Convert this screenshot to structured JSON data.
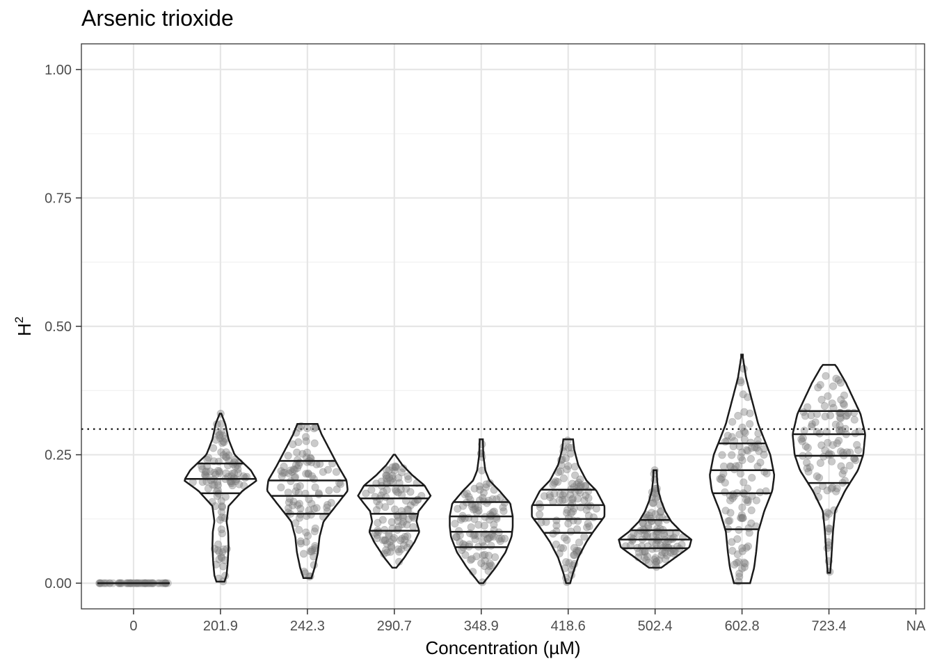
{
  "chart_data": {
    "type": "violin",
    "title": "Arsenic trioxide",
    "xlabel": "Concentration (µM)",
    "ylabel": "H",
    "ylabel_sup": "2",
    "categories": [
      "0",
      "201.9",
      "242.3",
      "290.7",
      "348.9",
      "418.6",
      "502.4",
      "602.8",
      "723.4",
      "NA"
    ],
    "ylim": [
      -0.05,
      1.05
    ],
    "yticks": [
      0.0,
      0.25,
      0.5,
      0.75,
      1.0
    ],
    "ytick_labels": [
      "0.00",
      "0.25",
      "0.50",
      "0.75",
      "1.00"
    ],
    "reference_line": {
      "y": 0.3,
      "style": "dotted"
    },
    "grid": true,
    "point_color": "#808080",
    "violins": [
      {
        "category": "0",
        "min": 0.0,
        "max": 0.0,
        "quantiles": [],
        "profile": []
      },
      {
        "category": "201.9",
        "min": 0.003,
        "max": 0.33,
        "quantiles": [
          0.175,
          0.203,
          0.233
        ],
        "profile": [
          [
            0.003,
            0.1
          ],
          [
            0.015,
            0.15
          ],
          [
            0.04,
            0.18
          ],
          [
            0.07,
            0.2
          ],
          [
            0.1,
            0.19
          ],
          [
            0.12,
            0.15
          ],
          [
            0.15,
            0.2
          ],
          [
            0.18,
            0.55
          ],
          [
            0.2,
            0.9
          ],
          [
            0.22,
            0.75
          ],
          [
            0.25,
            0.35
          ],
          [
            0.28,
            0.2
          ],
          [
            0.31,
            0.12
          ],
          [
            0.33,
            0.02
          ]
        ]
      },
      {
        "category": "242.3",
        "min": 0.01,
        "max": 0.31,
        "quantiles": [
          0.135,
          0.17,
          0.2,
          0.238
        ],
        "profile": [
          [
            0.01,
            0.1
          ],
          [
            0.03,
            0.18
          ],
          [
            0.06,
            0.26
          ],
          [
            0.09,
            0.3
          ],
          [
            0.12,
            0.4
          ],
          [
            0.15,
            0.7
          ],
          [
            0.18,
            1.0
          ],
          [
            0.2,
            0.97
          ],
          [
            0.23,
            0.75
          ],
          [
            0.26,
            0.55
          ],
          [
            0.29,
            0.35
          ],
          [
            0.31,
            0.25
          ]
        ]
      },
      {
        "category": "290.7",
        "min": 0.03,
        "max": 0.25,
        "quantiles": [
          0.102,
          0.135,
          0.165,
          0.19
        ],
        "profile": [
          [
            0.03,
            0.05
          ],
          [
            0.05,
            0.25
          ],
          [
            0.08,
            0.5
          ],
          [
            0.1,
            0.62
          ],
          [
            0.12,
            0.55
          ],
          [
            0.14,
            0.6
          ],
          [
            0.17,
            0.9
          ],
          [
            0.19,
            0.75
          ],
          [
            0.21,
            0.45
          ],
          [
            0.23,
            0.2
          ],
          [
            0.25,
            0.02
          ]
        ]
      },
      {
        "category": "348.9",
        "min": 0.0,
        "max": 0.28,
        "quantiles": [
          0.07,
          0.1,
          0.13,
          0.158
        ],
        "profile": [
          [
            0.0,
            0.05
          ],
          [
            0.03,
            0.35
          ],
          [
            0.06,
            0.6
          ],
          [
            0.09,
            0.75
          ],
          [
            0.11,
            0.78
          ],
          [
            0.13,
            0.78
          ],
          [
            0.155,
            0.72
          ],
          [
            0.18,
            0.45
          ],
          [
            0.2,
            0.2
          ],
          [
            0.22,
            0.1
          ],
          [
            0.25,
            0.05
          ],
          [
            0.28,
            0.04
          ]
        ]
      },
      {
        "category": "418.6",
        "min": 0.0,
        "max": 0.28,
        "quantiles": [
          0.098,
          0.125,
          0.152,
          0.182
        ],
        "profile": [
          [
            0.0,
            0.05
          ],
          [
            0.02,
            0.12
          ],
          [
            0.05,
            0.25
          ],
          [
            0.08,
            0.45
          ],
          [
            0.1,
            0.62
          ],
          [
            0.13,
            0.9
          ],
          [
            0.15,
            0.9
          ],
          [
            0.18,
            0.7
          ],
          [
            0.2,
            0.45
          ],
          [
            0.23,
            0.25
          ],
          [
            0.26,
            0.15
          ],
          [
            0.28,
            0.12
          ]
        ]
      },
      {
        "category": "502.4",
        "min": 0.03,
        "max": 0.22,
        "quantiles": [
          0.068,
          0.085,
          0.103,
          0.123
        ],
        "profile": [
          [
            0.03,
            0.15
          ],
          [
            0.05,
            0.5
          ],
          [
            0.07,
            0.85
          ],
          [
            0.085,
            0.9
          ],
          [
            0.1,
            0.65
          ],
          [
            0.12,
            0.4
          ],
          [
            0.14,
            0.25
          ],
          [
            0.16,
            0.15
          ],
          [
            0.18,
            0.08
          ],
          [
            0.2,
            0.05
          ],
          [
            0.22,
            0.04
          ]
        ]
      },
      {
        "category": "602.8",
        "min": 0.0,
        "max": 0.445,
        "quantiles": [
          0.105,
          0.175,
          0.22,
          0.272
        ],
        "profile": [
          [
            0.0,
            0.2
          ],
          [
            0.03,
            0.3
          ],
          [
            0.06,
            0.35
          ],
          [
            0.1,
            0.4
          ],
          [
            0.14,
            0.55
          ],
          [
            0.18,
            0.75
          ],
          [
            0.21,
            0.8
          ],
          [
            0.25,
            0.7
          ],
          [
            0.28,
            0.55
          ],
          [
            0.31,
            0.4
          ],
          [
            0.34,
            0.3
          ],
          [
            0.37,
            0.2
          ],
          [
            0.4,
            0.1
          ],
          [
            0.44,
            0.02
          ]
        ]
      },
      {
        "category": "723.4",
        "min": 0.02,
        "max": 0.425,
        "quantiles": [
          0.195,
          0.248,
          0.29,
          0.335
        ],
        "profile": [
          [
            0.02,
            0.03
          ],
          [
            0.05,
            0.06
          ],
          [
            0.1,
            0.1
          ],
          [
            0.14,
            0.15
          ],
          [
            0.18,
            0.4
          ],
          [
            0.22,
            0.72
          ],
          [
            0.25,
            0.85
          ],
          [
            0.29,
            0.9
          ],
          [
            0.33,
            0.78
          ],
          [
            0.36,
            0.6
          ],
          [
            0.39,
            0.42
          ],
          [
            0.42,
            0.2
          ],
          [
            0.425,
            0.15
          ]
        ]
      },
      {
        "category": "NA",
        "min": null,
        "max": null,
        "quantiles": [],
        "profile": []
      }
    ]
  }
}
